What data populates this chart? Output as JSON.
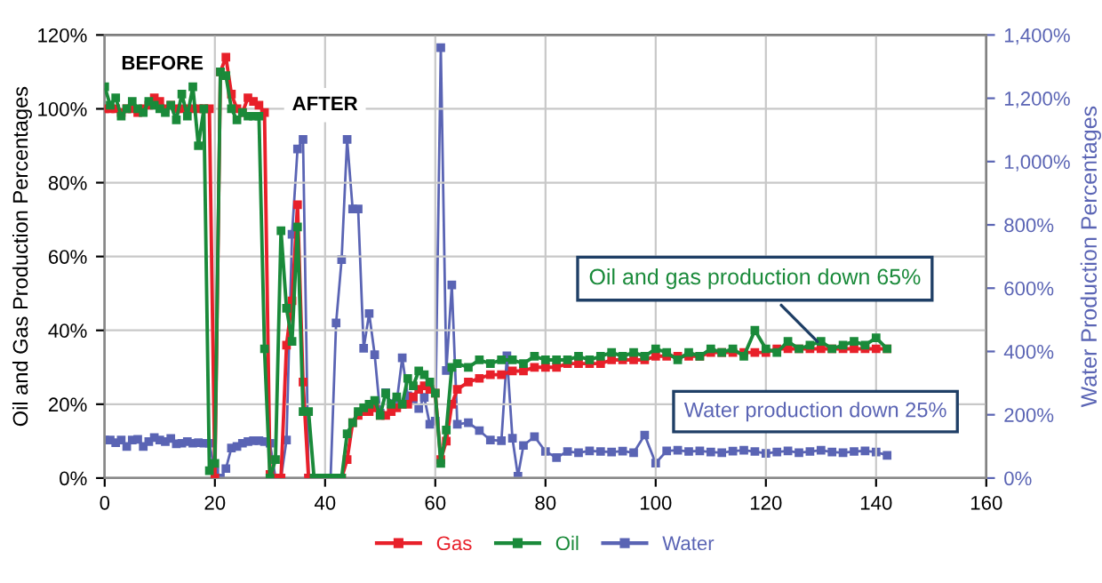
{
  "chart_data": {
    "type": "line",
    "xlabel": null,
    "ylabel": "Oil and Gas Production Percentages",
    "y2label": "Water Production Percentages",
    "x": [
      0,
      1,
      2,
      3,
      4,
      5,
      6,
      7,
      8,
      9,
      10,
      11,
      12,
      13,
      14,
      15,
      16,
      17,
      18,
      19,
      20,
      21,
      22,
      23,
      24,
      25,
      26,
      27,
      28,
      29,
      30,
      31,
      32,
      33,
      34,
      35,
      36,
      37,
      38,
      39,
      40,
      41,
      42,
      43,
      44,
      45,
      46,
      47,
      48,
      49,
      50,
      51,
      52,
      53,
      54,
      55,
      56,
      57,
      58,
      59,
      60,
      61,
      62,
      63,
      64,
      66,
      68,
      70,
      72,
      74,
      76,
      78,
      80,
      82,
      84,
      86,
      88,
      90,
      92,
      94,
      96,
      98,
      100,
      102,
      104,
      106,
      108,
      110,
      112,
      114,
      116,
      118,
      120,
      122,
      124,
      126,
      128,
      130,
      132,
      134,
      136,
      138,
      140,
      142
    ],
    "series": [
      {
        "name": "Gas",
        "color": "#e8202a",
        "values": [
          100,
          100,
          100,
          99,
          100,
          100,
          99,
          100,
          101,
          103,
          102,
          100,
          101,
          100,
          100,
          100,
          100,
          100,
          100,
          100,
          0,
          110,
          114,
          104,
          100,
          99,
          103,
          102,
          101,
          99,
          1,
          0,
          0,
          36,
          48,
          74,
          26,
          0,
          0,
          0,
          0,
          0,
          0,
          0,
          5,
          15,
          17,
          18,
          18,
          19,
          17,
          17,
          18,
          19,
          20,
          20,
          22,
          24,
          25,
          24,
          23,
          5,
          10,
          20,
          24,
          26,
          27,
          28,
          28,
          29,
          29,
          30,
          30,
          30,
          31,
          31,
          31,
          31,
          32,
          32,
          32,
          32,
          33,
          33,
          33,
          33,
          33,
          34,
          34,
          34,
          34,
          34,
          34,
          35,
          35,
          35,
          35,
          35,
          35,
          35,
          35,
          35,
          35,
          35
        ]
      },
      {
        "name": "Oil",
        "color": "#1a8a3a",
        "values": [
          106,
          101,
          103,
          98,
          100,
          102,
          100,
          99,
          102,
          101,
          100,
          99,
          101,
          97,
          104,
          98,
          106,
          90,
          100,
          2,
          4,
          110,
          109,
          100,
          97,
          99,
          98,
          98,
          98,
          35,
          0,
          5,
          67,
          46,
          37,
          68,
          18,
          18,
          0,
          0,
          0,
          0,
          0,
          0,
          12,
          15,
          18,
          19,
          20,
          21,
          17,
          23,
          20,
          22,
          20,
          27,
          25,
          29,
          28,
          26,
          23,
          4,
          13,
          30,
          31,
          30,
          32,
          31,
          32,
          32,
          31,
          33,
          32,
          32,
          32,
          33,
          32,
          33,
          34,
          33,
          34,
          33,
          35,
          34,
          32,
          34,
          33,
          35,
          34,
          35,
          33,
          40,
          35,
          34,
          37,
          35,
          36,
          37,
          35,
          36,
          37,
          36,
          38,
          35
        ]
      },
      {
        "name": "Water",
        "color": "#5a64b4",
        "axis": "y2",
        "x": [
          0,
          1,
          2,
          3,
          4,
          5,
          6,
          7,
          8,
          9,
          10,
          11,
          12,
          13,
          14,
          15,
          16,
          17,
          18,
          19,
          20,
          21,
          22,
          23,
          24,
          25,
          26,
          27,
          28,
          29,
          30,
          31,
          32,
          33,
          34,
          35,
          36,
          37,
          38,
          39,
          40,
          41,
          42,
          43,
          44,
          45,
          46,
          47,
          48,
          49,
          50,
          51,
          52,
          53,
          54,
          55,
          56,
          57,
          58,
          59,
          60,
          61,
          62,
          63,
          64,
          66,
          68,
          70,
          72,
          73,
          74,
          75,
          76,
          78,
          80,
          82,
          84,
          86,
          88,
          90,
          92,
          94,
          96,
          98,
          100,
          102,
          104,
          106,
          108,
          110,
          112,
          114,
          116,
          118,
          120,
          122,
          124,
          126,
          128,
          130,
          132,
          134,
          136,
          138,
          140,
          142
        ],
        "values": [
          120,
          120,
          112,
          120,
          100,
          120,
          122,
          100,
          115,
          128,
          120,
          115,
          125,
          108,
          110,
          115,
          110,
          112,
          110,
          110,
          20,
          0,
          30,
          95,
          100,
          110,
          115,
          118,
          118,
          115,
          110,
          0,
          0,
          120,
          770,
          1040,
          1070,
          0,
          0,
          0,
          0,
          0,
          490,
          690,
          1070,
          850,
          850,
          410,
          520,
          390,
          205,
          270,
          235,
          240,
          380,
          260,
          250,
          220,
          255,
          170,
          180,
          1360,
          340,
          610,
          170,
          175,
          150,
          120,
          118,
          386,
          126,
          6,
          103,
          131,
          84,
          65,
          84,
          80,
          86,
          84,
          82,
          85,
          80,
          136,
          47,
          86,
          88,
          84,
          86,
          82,
          80,
          85,
          88,
          84,
          78,
          82,
          86,
          80,
          84,
          88,
          82,
          80,
          84,
          86,
          82,
          72
        ]
      }
    ],
    "xlim": [
      0,
      160
    ],
    "xticks": [
      0,
      20,
      40,
      60,
      80,
      100,
      120,
      140,
      160
    ],
    "ylim": [
      0,
      120
    ],
    "yticks": [
      {
        "value": 0,
        "label": "0%"
      },
      {
        "value": 20,
        "label": "20%"
      },
      {
        "value": 40,
        "label": "40%"
      },
      {
        "value": 60,
        "label": "60%"
      },
      {
        "value": 80,
        "label": "80%"
      },
      {
        "value": 100,
        "label": "100%"
      },
      {
        "value": 120,
        "label": "120%"
      }
    ],
    "y2lim": [
      0,
      1400
    ],
    "y2ticks": [
      {
        "value": 0,
        "label": "0%"
      },
      {
        "value": 200,
        "label": "200%"
      },
      {
        "value": 400,
        "label": "400%"
      },
      {
        "value": 600,
        "label": "600%"
      },
      {
        "value": 800,
        "label": "800%"
      },
      {
        "value": 1000,
        "label": "1,000%"
      },
      {
        "value": 1200,
        "label": "1,200%"
      },
      {
        "value": 1400,
        "label": "1,400%"
      }
    ],
    "annotations": [
      "BEFORE",
      "AFTER",
      {
        "text": "Oil and gas production down 65%",
        "x": 130,
        "y": 36
      },
      "Water production down 25%"
    ],
    "grid": true,
    "legend": "bottom",
    "marker": "square",
    "line_style": "solid"
  }
}
